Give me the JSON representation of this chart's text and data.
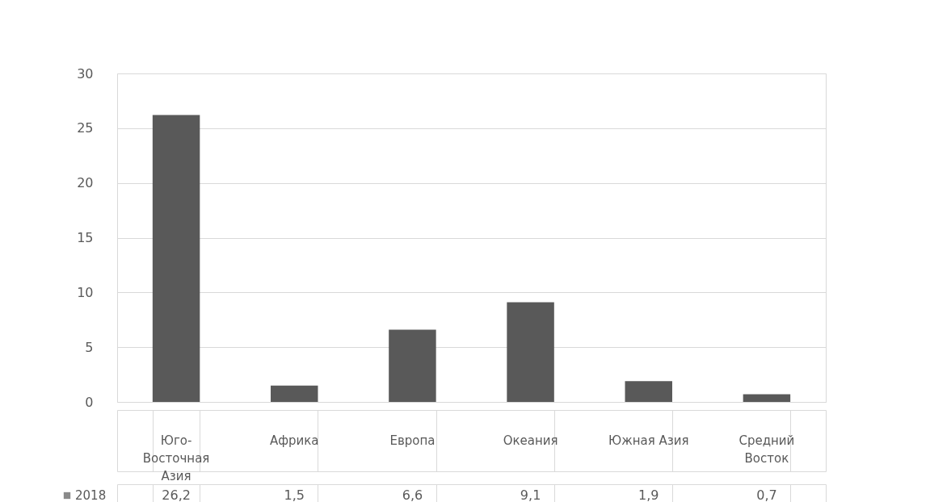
{
  "chart_data": {
    "type": "bar",
    "categories": [
      "Юго-Восточная Азия",
      "Африка",
      "Европа",
      "Океания",
      "Южная Азия",
      "Средний Восток"
    ],
    "series": [
      {
        "name": "2018",
        "color": "#595959",
        "values": [
          26.2,
          1.5,
          6.6,
          9.1,
          1.9,
          0.7
        ],
        "value_labels": [
          "26,2",
          "1,5",
          "6,6",
          "9,1",
          "1,9",
          "0,7"
        ]
      }
    ],
    "ylim": [
      0,
      30
    ],
    "yticks": [
      0,
      5,
      10,
      15,
      20,
      25,
      30
    ],
    "grid": "y",
    "legend": "bottom left"
  }
}
